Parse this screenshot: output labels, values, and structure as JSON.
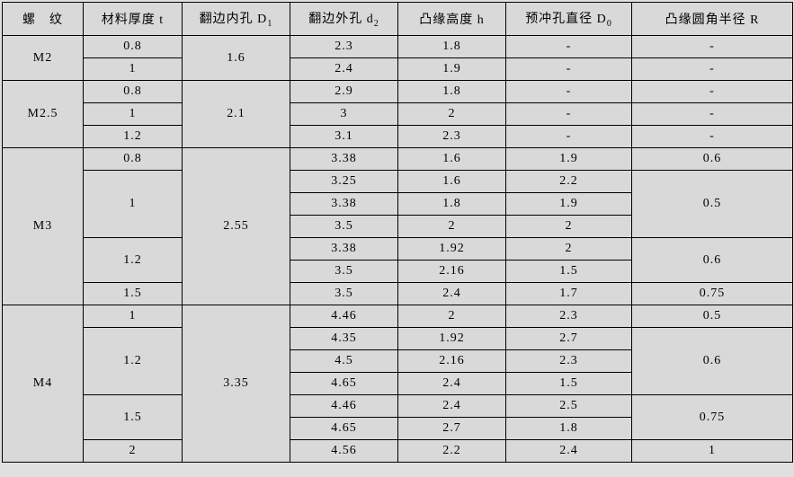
{
  "headers": {
    "c1": "螺　纹",
    "c2_pre": "材料厚度 t",
    "c3_pre": "翻边内孔 D",
    "c3_sub": "1",
    "c4_pre": "翻边外孔 d",
    "c4_sub": "2",
    "c5_pre": "凸缘高度 h",
    "c6_pre": "预冲孔直径 D",
    "c6_sub": "0",
    "c7_pre": "凸缘圆角半径 R"
  },
  "g1": {
    "thread": "M2",
    "inner": "1.6",
    "r1": {
      "t": "0.8",
      "d2": "2.3",
      "h": "1.8",
      "D0": "-",
      "R": "-"
    },
    "r2": {
      "t": "1",
      "d2": "2.4",
      "h": "1.9",
      "D0": "-",
      "R": "-"
    }
  },
  "g2": {
    "thread": "M2.5",
    "inner": "2.1",
    "r1": {
      "t": "0.8",
      "d2": "2.9",
      "h": "1.8",
      "D0": "-",
      "R": "-"
    },
    "r2": {
      "t": "1",
      "d2": "3",
      "h": "2",
      "D0": "-",
      "R": "-"
    },
    "r3": {
      "t": "1.2",
      "d2": "3.1",
      "h": "2.3",
      "D0": "-",
      "R": "-"
    }
  },
  "g3": {
    "thread": "M3",
    "inner": "2.55",
    "r1": {
      "t": "0.8",
      "d2": "3.38",
      "h": "1.6",
      "D0": "1.9",
      "R": "0.6"
    },
    "r2": {
      "t": "1",
      "d2": "3.25",
      "h": "1.6",
      "D0": "2.2"
    },
    "r3": {
      "d2": "3.38",
      "h": "1.8",
      "D0": "1.9",
      "Rspan": "0.5"
    },
    "r4": {
      "d2": "3.5",
      "h": "2",
      "D0": "2"
    },
    "r5": {
      "t": "1.2",
      "d2": "3.38",
      "h": "1.92",
      "D0": "2"
    },
    "r6": {
      "d2": "3.5",
      "h": "2.16",
      "D0": "1.5",
      "Rspan": "0.6"
    },
    "r7": {
      "t": "1.5",
      "d2": "3.5",
      "h": "2.4",
      "D0": "1.7",
      "R": "0.75"
    }
  },
  "g4": {
    "thread": "M4",
    "inner": "3.35",
    "r1": {
      "t": "1",
      "d2": "4.46",
      "h": "2",
      "D0": "2.3",
      "R": "0.5"
    },
    "r2": {
      "t": "1.2",
      "d2": "4.35",
      "h": "1.92",
      "D0": "2.7"
    },
    "r3": {
      "d2": "4.5",
      "h": "2.16",
      "D0": "2.3",
      "Rspan": "0.6"
    },
    "r4": {
      "d2": "4.65",
      "h": "2.4",
      "D0": "1.5"
    },
    "r5": {
      "t": "1.5",
      "d2": "4.46",
      "h": "2.4",
      "D0": "2.5"
    },
    "r6": {
      "d2": "4.65",
      "h": "2.7",
      "D0": "1.8",
      "Rspan": "0.75"
    },
    "r7": {
      "t": "2",
      "d2": "4.56",
      "h": "2.2",
      "D0": "2.4",
      "R": "1"
    }
  }
}
